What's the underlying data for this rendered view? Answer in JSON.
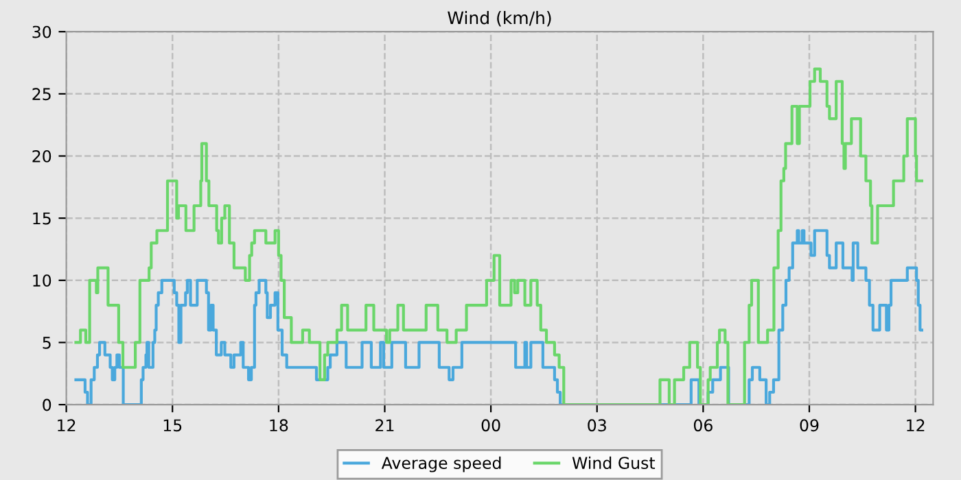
{
  "chart_data": {
    "type": "step",
    "title": "Wind (km/h)",
    "xlim": [
      12,
      36.5
    ],
    "ylim": [
      0,
      30
    ],
    "xticks": [
      {
        "value": 12,
        "label": "12"
      },
      {
        "value": 15,
        "label": "15"
      },
      {
        "value": 18,
        "label": "18"
      },
      {
        "value": 21,
        "label": "21"
      },
      {
        "value": 24,
        "label": "00"
      },
      {
        "value": 27,
        "label": "03"
      },
      {
        "value": 30,
        "label": "06"
      },
      {
        "value": 33,
        "label": "09"
      },
      {
        "value": 36,
        "label": "12"
      }
    ],
    "yticks": [
      0,
      5,
      10,
      15,
      20,
      25,
      30
    ],
    "grid": true,
    "legend": "bottom",
    "marker": "none",
    "line_style": "solid",
    "series": [
      {
        "name": "Average speed",
        "color": "#4aa8dc",
        "x": [
          12.27,
          12.53,
          12.6,
          12.7,
          12.79,
          12.88,
          12.94,
          13.09,
          13.24,
          13.3,
          13.37,
          13.43,
          13.5,
          13.61,
          14.12,
          14.17,
          14.25,
          14.28,
          14.33,
          14.45,
          14.5,
          14.54,
          14.6,
          14.7,
          15.05,
          15.12,
          15.18,
          15.24,
          15.37,
          15.42,
          15.51,
          15.7,
          15.96,
          16.02,
          16.09,
          16.15,
          16.24,
          16.32,
          16.38,
          16.48,
          16.65,
          16.74,
          16.93,
          17.0,
          17.15,
          17.23,
          17.32,
          17.36,
          17.45,
          17.64,
          17.68,
          17.77,
          17.9,
          17.98,
          18.1,
          18.23,
          19.07,
          19.39,
          19.46,
          19.65,
          19.91,
          20.36,
          20.62,
          20.88,
          20.97,
          21.2,
          21.59,
          21.97,
          22.54,
          22.82,
          22.93,
          23.18,
          24.7,
          24.96,
          25.01,
          25.13,
          25.47,
          25.8,
          25.88,
          25.96,
          29.66,
          29.88,
          30.14,
          30.27,
          30.49,
          30.72,
          31.3,
          31.39,
          31.6,
          31.78,
          31.88,
          31.99,
          32.14,
          32.25,
          32.34,
          32.43,
          32.53,
          32.66,
          32.7,
          32.8,
          32.85,
          33.05,
          33.15,
          33.5,
          33.57,
          33.76,
          33.95,
          34.21,
          34.24,
          34.37,
          34.6,
          34.7,
          34.8,
          34.99,
          35.18,
          35.25,
          35.31,
          35.77,
          36.03,
          36.08,
          36.13,
          36.18
        ],
        "values": [
          2,
          1,
          0,
          2,
          3,
          4,
          5,
          4,
          3,
          2,
          3,
          4,
          3,
          0,
          2,
          3,
          4,
          5,
          3,
          5,
          6,
          8,
          9,
          10,
          9,
          8,
          5,
          8,
          9,
          10,
          8,
          10,
          9,
          6,
          8,
          6,
          4,
          4,
          5,
          4,
          3,
          4,
          5,
          3,
          2,
          3,
          8,
          9,
          10,
          9,
          7,
          8,
          9,
          6,
          4,
          3,
          2,
          3,
          4,
          5,
          3,
          5,
          3,
          5,
          3,
          5,
          3,
          5,
          3,
          2,
          3,
          5,
          3,
          5,
          3,
          5,
          3,
          2,
          1,
          0,
          2,
          0,
          1,
          2,
          3,
          0,
          2,
          3,
          2,
          0,
          1,
          2,
          6,
          8,
          10,
          11,
          13,
          14,
          13,
          14,
          13,
          12,
          14,
          12,
          11,
          13,
          11,
          10,
          13,
          11,
          10,
          8,
          6,
          8,
          6,
          8,
          10,
          11,
          10,
          8,
          6,
          6
        ]
      },
      {
        "name": "Wind Gust",
        "color": "#6ad66a",
        "x": [
          12.27,
          12.4,
          12.55,
          12.66,
          12.85,
          12.89,
          13.18,
          13.48,
          13.6,
          13.95,
          14.08,
          14.34,
          14.4,
          14.56,
          14.86,
          15.12,
          15.17,
          15.38,
          15.61,
          15.8,
          15.83,
          15.96,
          16.03,
          16.25,
          16.3,
          16.39,
          16.48,
          16.61,
          16.74,
          17.06,
          17.18,
          17.24,
          17.32,
          17.64,
          17.9,
          18.0,
          18.07,
          18.16,
          18.36,
          18.68,
          18.87,
          19.17,
          19.3,
          19.39,
          19.65,
          19.78,
          19.95,
          20.47,
          20.69,
          21.05,
          21.14,
          21.37,
          21.53,
          22.17,
          22.5,
          22.76,
          23.02,
          23.31,
          23.88,
          24.09,
          24.25,
          24.57,
          24.67,
          24.76,
          24.96,
          25.13,
          25.31,
          25.41,
          25.57,
          25.8,
          25.93,
          26.06,
          28.78,
          29.04,
          29.19,
          29.45,
          29.62,
          29.84,
          29.92,
          30.14,
          30.2,
          30.4,
          30.46,
          30.62,
          30.7,
          31.17,
          31.3,
          31.37,
          31.56,
          31.82,
          32.0,
          32.12,
          32.2,
          32.28,
          32.33,
          32.51,
          32.66,
          32.72,
          33.02,
          33.15,
          33.31,
          33.5,
          33.57,
          33.76,
          33.93,
          33.98,
          34.02,
          34.19,
          34.45,
          34.6,
          34.73,
          34.77,
          34.93,
          35.38,
          35.67,
          35.77,
          36.0,
          36.03,
          36.18
        ],
        "values": [
          5,
          6,
          5,
          10,
          9,
          11,
          8,
          5,
          3,
          5,
          10,
          11,
          13,
          14,
          18,
          15,
          16,
          14,
          16,
          18,
          21,
          18,
          16,
          14,
          13,
          15,
          16,
          13,
          11,
          10,
          12,
          13,
          14,
          13,
          14,
          12,
          10,
          7,
          5,
          6,
          5,
          2,
          4,
          5,
          6,
          8,
          6,
          8,
          6,
          5,
          6,
          8,
          6,
          8,
          6,
          5,
          6,
          8,
          10,
          12,
          8,
          10,
          9,
          10,
          8,
          10,
          8,
          6,
          5,
          4,
          3,
          0,
          2,
          0,
          2,
          3,
          5,
          3,
          0,
          2,
          3,
          5,
          6,
          5,
          0,
          5,
          8,
          10,
          5,
          6,
          11,
          14,
          18,
          19,
          21,
          24,
          21,
          24,
          26,
          27,
          26,
          24,
          23,
          26,
          21,
          19,
          21,
          23,
          20,
          18,
          16,
          13,
          16,
          18,
          20,
          23,
          20,
          18,
          18
        ]
      }
    ]
  }
}
